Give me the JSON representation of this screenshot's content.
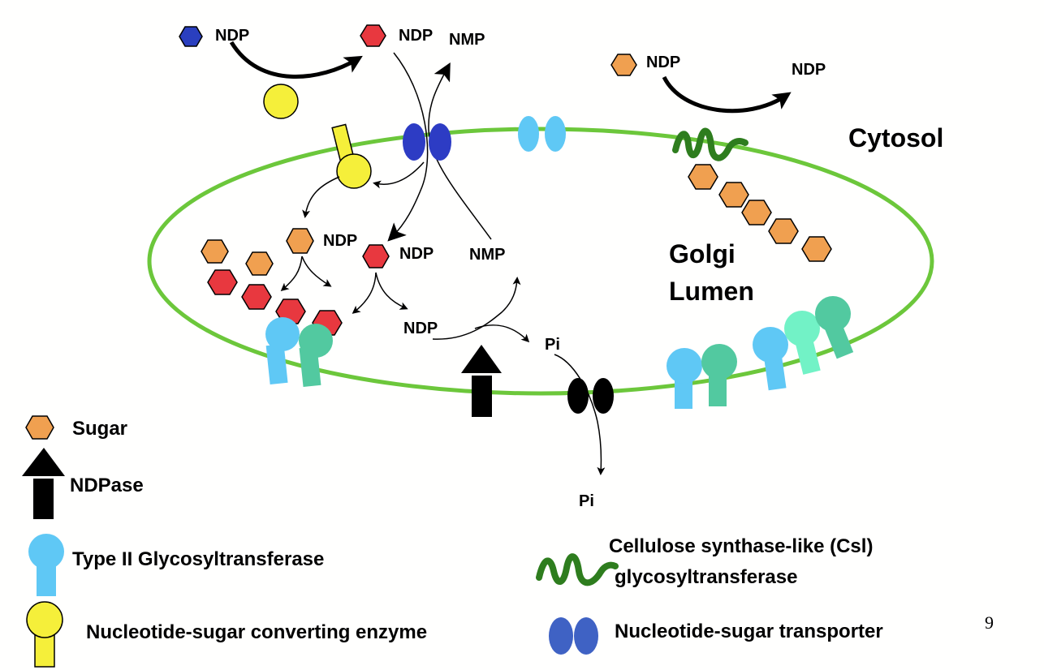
{
  "colors": {
    "membrane": "#6cc73b",
    "sugar": "#f0a050",
    "red_sugar": "#e8383f",
    "blue_sugar": "#2a3fbf",
    "converting_enzyme": "#f5ef3a",
    "transporter_dark_blue": "#2d3cc4",
    "transporter_light_blue": "#5fc8f5",
    "legend_transporter": "#3f62c4",
    "glycosyltransferase_blue": "#5fc8f5",
    "glycosyltransferase_teal": "#52c9a0",
    "glycosyltransferase_mint": "#72f2c6",
    "csl": "#2e7d1e",
    "ndpase": "#000000"
  },
  "labels": {
    "ndp_blue": "NDP",
    "ndp_red_top": "NDP",
    "nmp_top": "NMP",
    "ndp_csl_in": "NDP",
    "ndp_csl_out": "NDP",
    "cytosol": "Cytosol",
    "golgi": "Golgi",
    "lumen": "Lumen",
    "ndp_orange_lumen": "NDP",
    "ndp_red_lumen": "NDP",
    "nmp_lumen": "NMP",
    "ndp_bottom": "NDP",
    "pi_inside": "Pi",
    "pi_outside": "Pi"
  },
  "legend": {
    "sugar": "Sugar",
    "ndpase": "NDPase",
    "type2": "Type II Glycosyltransferase",
    "converting": "Nucleotide-sugar converting enzyme",
    "csl_line1": "Cellulose synthase-like (Csl)",
    "csl_line2": "glycosyltransferase",
    "transporter": "Nucleotide-sugar transporter"
  },
  "page_number": "9"
}
